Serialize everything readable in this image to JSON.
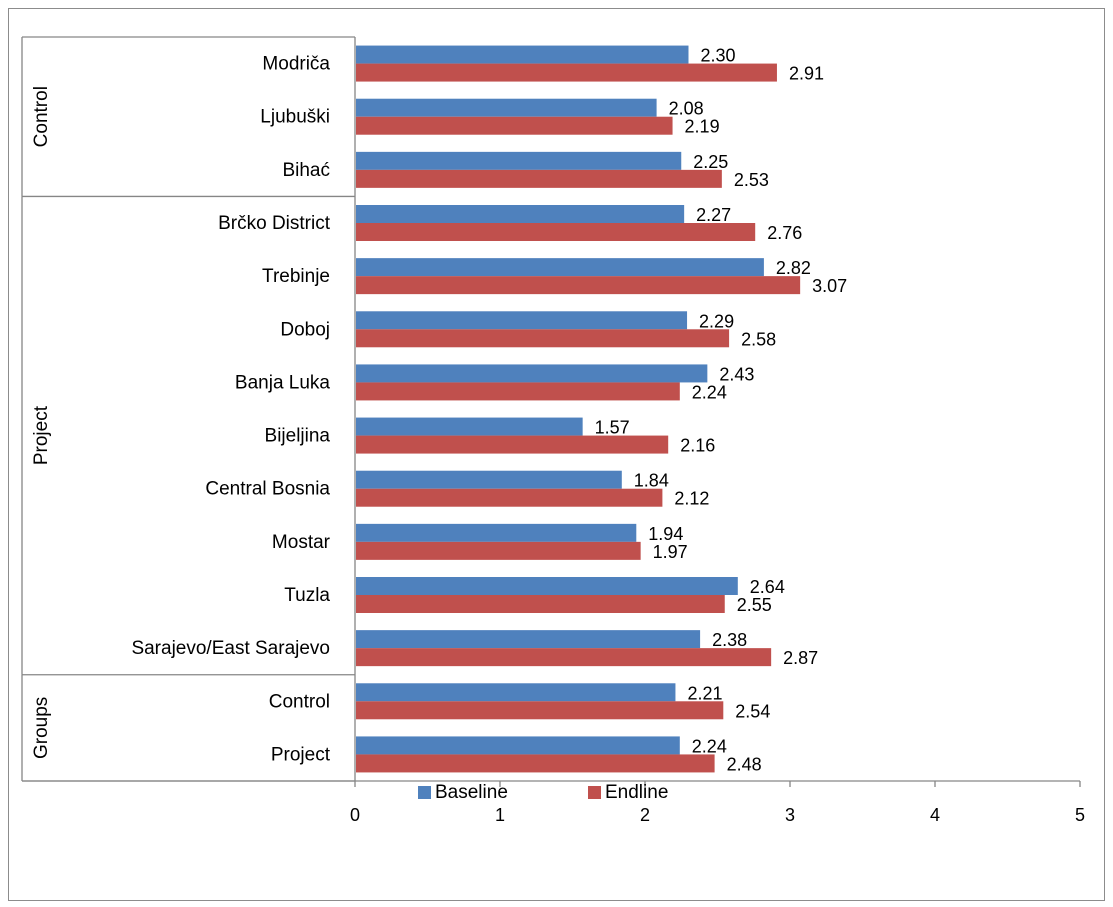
{
  "chart_data": {
    "type": "bar",
    "orientation": "horizontal",
    "categories": [
      "Modriča",
      "Ljubuški",
      "Bihać",
      "Brčko District",
      "Trebinje",
      "Doboj",
      "Banja Luka",
      "Bijeljina",
      "Central Bosnia",
      "Mostar",
      "Tuzla",
      "Sarajevo/East Sarajevo",
      "Control",
      "Project"
    ],
    "groups": [
      {
        "name": "Control",
        "count": 3
      },
      {
        "name": "Project",
        "count": 9
      },
      {
        "name": "Groups",
        "count": 2
      }
    ],
    "series": [
      {
        "name": "Baseline",
        "color": "#4f81bd",
        "values": [
          2.3,
          2.08,
          2.25,
          2.27,
          2.82,
          2.29,
          2.43,
          1.57,
          1.84,
          1.94,
          2.64,
          2.38,
          2.21,
          2.24
        ],
        "labels": [
          "2.30",
          "2.08",
          "2.25",
          "2.27",
          "2.82",
          "2.29",
          "2.43",
          "1.57",
          "1.84",
          "1.94",
          "2.64",
          "2.38",
          "2.21",
          "2.24"
        ]
      },
      {
        "name": "Endline",
        "color": "#c0504d",
        "values": [
          2.91,
          2.19,
          2.53,
          2.76,
          3.07,
          2.58,
          2.24,
          2.16,
          2.12,
          1.97,
          2.55,
          2.87,
          2.54,
          2.48
        ],
        "labels": [
          "2.91",
          "2.19",
          "2.53",
          "2.76",
          "3.07",
          "2.58",
          "2.24",
          "2.16",
          "2.12",
          "1.97",
          "2.55",
          "2.87",
          "2.54",
          "2.48"
        ]
      }
    ],
    "xlim": [
      0,
      5
    ],
    "xticks": [
      "0",
      "1",
      "2",
      "3",
      "4",
      "5"
    ],
    "grid": false,
    "legend_position": "bottom"
  }
}
